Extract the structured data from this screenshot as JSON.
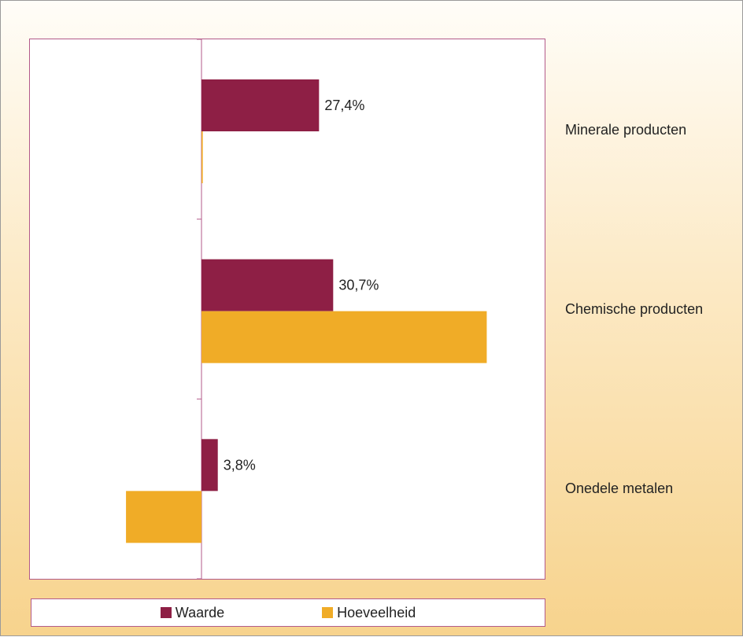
{
  "chart_data": {
    "type": "bar",
    "orientation": "horizontal",
    "categories": [
      "Minerale producten",
      "Chemische producten",
      "Onedele metalen"
    ],
    "series": [
      {
        "name": "Waarde",
        "color": "#8e1f45",
        "values": [
          27.4,
          30.7,
          3.8
        ],
        "labels": [
          "27,4%",
          "30,7%",
          "3,8%"
        ]
      },
      {
        "name": "Hoeveelheid",
        "color": "#f0ac27",
        "values": [
          0.3,
          66.5,
          -17.6
        ],
        "labels": [
          "",
          "",
          ""
        ]
      }
    ],
    "xlim": [
      -40,
      80
    ],
    "grid": false,
    "legend_position": "bottom"
  }
}
